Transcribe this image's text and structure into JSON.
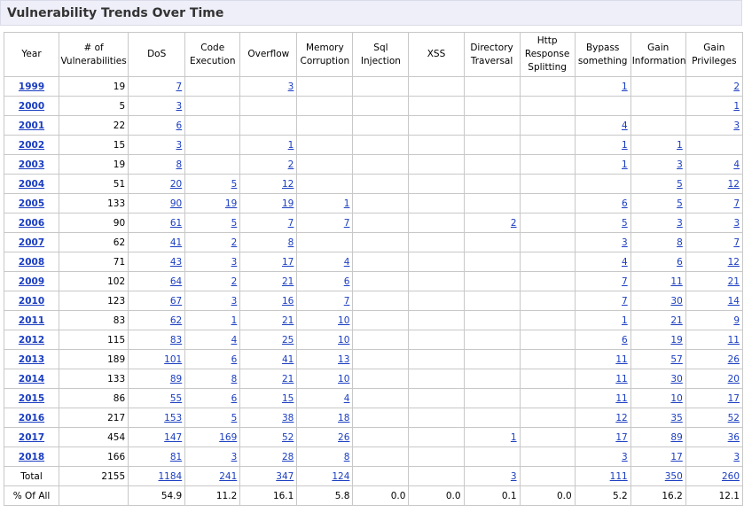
{
  "page": {
    "title": "Vulnerability Trends Over Time"
  },
  "columns": [
    "Year",
    "# of Vulnerabilities",
    "DoS",
    "Code Execution",
    "Overflow",
    "Memory Corruption",
    "Sql Injection",
    "XSS",
    "Directory Traversal",
    "Http Response Splitting",
    "Bypass something",
    "Gain Information",
    "Gain Privileges"
  ],
  "rows": [
    [
      "1999",
      "19",
      "7",
      "",
      "3",
      "",
      "",
      "",
      "",
      "",
      "1",
      "",
      "2"
    ],
    [
      "2000",
      "5",
      "3",
      "",
      "",
      "",
      "",
      "",
      "",
      "",
      "",
      "",
      "1"
    ],
    [
      "2001",
      "22",
      "6",
      "",
      "",
      "",
      "",
      "",
      "",
      "",
      "4",
      "",
      "3"
    ],
    [
      "2002",
      "15",
      "3",
      "",
      "1",
      "",
      "",
      "",
      "",
      "",
      "1",
      "1",
      ""
    ],
    [
      "2003",
      "19",
      "8",
      "",
      "2",
      "",
      "",
      "",
      "",
      "",
      "1",
      "3",
      "4"
    ],
    [
      "2004",
      "51",
      "20",
      "5",
      "12",
      "",
      "",
      "",
      "",
      "",
      "",
      "5",
      "12"
    ],
    [
      "2005",
      "133",
      "90",
      "19",
      "19",
      "1",
      "",
      "",
      "",
      "",
      "6",
      "5",
      "7"
    ],
    [
      "2006",
      "90",
      "61",
      "5",
      "7",
      "7",
      "",
      "",
      "2",
      "",
      "5",
      "3",
      "3"
    ],
    [
      "2007",
      "62",
      "41",
      "2",
      "8",
      "",
      "",
      "",
      "",
      "",
      "3",
      "8",
      "7"
    ],
    [
      "2008",
      "71",
      "43",
      "3",
      "17",
      "4",
      "",
      "",
      "",
      "",
      "4",
      "6",
      "12"
    ],
    [
      "2009",
      "102",
      "64",
      "2",
      "21",
      "6",
      "",
      "",
      "",
      "",
      "7",
      "11",
      "21"
    ],
    [
      "2010",
      "123",
      "67",
      "3",
      "16",
      "7",
      "",
      "",
      "",
      "",
      "7",
      "30",
      "14"
    ],
    [
      "2011",
      "83",
      "62",
      "1",
      "21",
      "10",
      "",
      "",
      "",
      "",
      "1",
      "21",
      "9"
    ],
    [
      "2012",
      "115",
      "83",
      "4",
      "25",
      "10",
      "",
      "",
      "",
      "",
      "6",
      "19",
      "11"
    ],
    [
      "2013",
      "189",
      "101",
      "6",
      "41",
      "13",
      "",
      "",
      "",
      "",
      "11",
      "57",
      "26"
    ],
    [
      "2014",
      "133",
      "89",
      "8",
      "21",
      "10",
      "",
      "",
      "",
      "",
      "11",
      "30",
      "20"
    ],
    [
      "2015",
      "86",
      "55",
      "6",
      "15",
      "4",
      "",
      "",
      "",
      "",
      "11",
      "10",
      "17"
    ],
    [
      "2016",
      "217",
      "153",
      "5",
      "38",
      "18",
      "",
      "",
      "",
      "",
      "12",
      "35",
      "52"
    ],
    [
      "2017",
      "454",
      "147",
      "169",
      "52",
      "26",
      "",
      "",
      "1",
      "",
      "17",
      "89",
      "36"
    ],
    [
      "2018",
      "166",
      "81",
      "3",
      "28",
      "8",
      "",
      "",
      "",
      "",
      "3",
      "17",
      "3"
    ]
  ],
  "total": [
    "Total",
    "2155",
    "1184",
    "241",
    "347",
    "124",
    "",
    "",
    "3",
    "",
    "111",
    "350",
    "260"
  ],
  "percent": [
    "% Of All",
    "",
    "54.9",
    "11.2",
    "16.1",
    "5.8",
    "0.0",
    "0.0",
    "0.1",
    "0.0",
    "5.2",
    "16.2",
    "12.1"
  ]
}
